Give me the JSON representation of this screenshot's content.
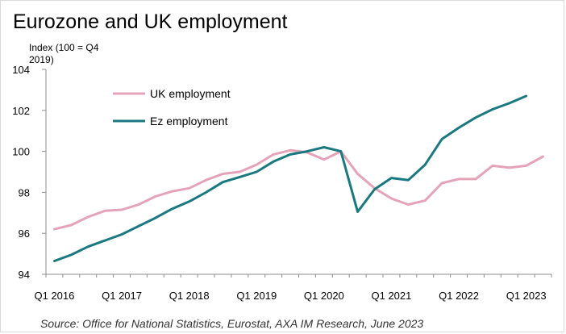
{
  "chart_data": {
    "type": "line",
    "title": "Eurozone and UK employment",
    "ylabel": "Index (100 = Q4 2019)",
    "source": "Source: Office for National Statistics, Eurostat, AXA IM Research, June 2023",
    "ylim": [
      94,
      104
    ],
    "yticks": [
      94,
      96,
      98,
      100,
      102,
      104
    ],
    "x_labels": [
      "Q1 2016",
      "Q1 2017",
      "Q1 2018",
      "Q1 2019",
      "Q1 2020",
      "Q1 2021",
      "Q1 2022",
      "Q1 2023"
    ],
    "x": [
      "Q1 2016",
      "Q2 2016",
      "Q3 2016",
      "Q4 2016",
      "Q1 2017",
      "Q2 2017",
      "Q3 2017",
      "Q4 2017",
      "Q1 2018",
      "Q2 2018",
      "Q3 2018",
      "Q4 2018",
      "Q1 2019",
      "Q2 2019",
      "Q3 2019",
      "Q4 2019",
      "Q1 2020",
      "Q2 2020",
      "Q3 2020",
      "Q4 2020",
      "Q1 2021",
      "Q2 2021",
      "Q3 2021",
      "Q4 2021",
      "Q1 2022",
      "Q2 2022",
      "Q3 2022",
      "Q4 2022",
      "Q1 2023",
      "Q2 2023"
    ],
    "grid": false,
    "legend_position": "top-left",
    "series": [
      {
        "name": "UK employment",
        "color": "#e5a3b8",
        "values": [
          96.2,
          96.4,
          96.8,
          97.1,
          97.15,
          97.4,
          97.8,
          98.05,
          98.2,
          98.6,
          98.9,
          99.0,
          99.35,
          99.85,
          100.05,
          99.95,
          99.6,
          100.0,
          98.9,
          98.2,
          97.7,
          97.4,
          97.6,
          98.45,
          98.65,
          98.65,
          99.3,
          99.2,
          99.3,
          99.75
        ]
      },
      {
        "name": "Ez employment",
        "color": "#1a7880",
        "values": [
          94.65,
          94.95,
          95.35,
          95.65,
          95.95,
          96.35,
          96.75,
          97.2,
          97.55,
          98.0,
          98.5,
          98.75,
          99.0,
          99.5,
          99.85,
          100.0,
          100.2,
          100.0,
          97.05,
          98.15,
          98.7,
          98.6,
          99.35,
          100.6,
          101.15,
          101.65,
          102.05,
          102.35,
          102.7,
          null
        ]
      }
    ]
  }
}
